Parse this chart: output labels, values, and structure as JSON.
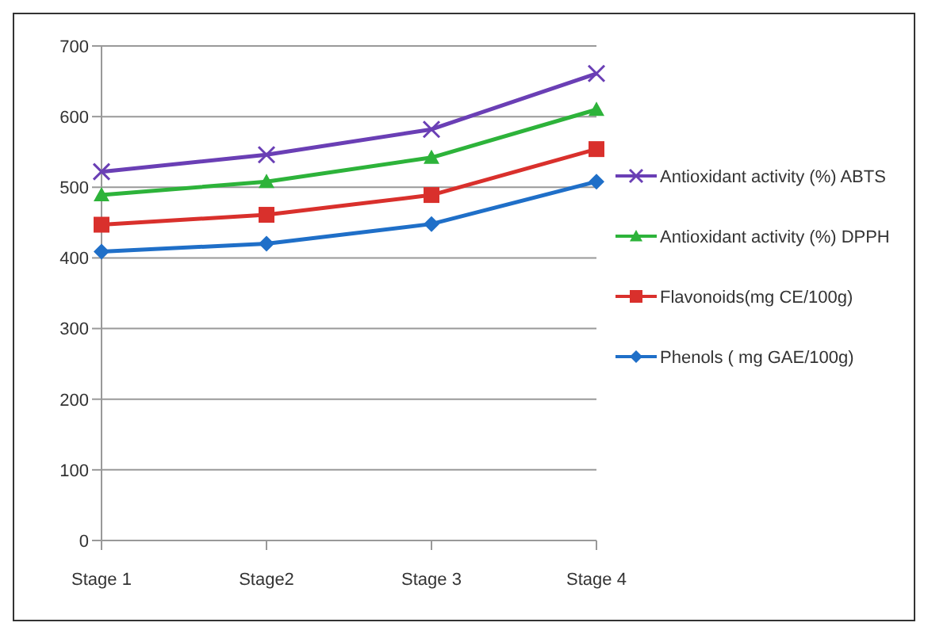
{
  "chart_data": {
    "type": "line",
    "categories": [
      "Stage 1",
      "Stage2",
      "Stage 3",
      "Stage 4"
    ],
    "series": [
      {
        "name": "Antioxidant activity (%) ABTS",
        "color": "#6a3fb5",
        "marker": "cross",
        "values": [
          522,
          546,
          582,
          661
        ]
      },
      {
        "name": "Antioxidant activity (%) DPPH",
        "color": "#2db33a",
        "marker": "triangle",
        "values": [
          489,
          508,
          542,
          610
        ]
      },
      {
        "name": "Flavonoids(mg CE/100g)",
        "color": "#d9302c",
        "marker": "square",
        "values": [
          447,
          461,
          489,
          554
        ]
      },
      {
        "name": "Phenols ( mg GAE/100g)",
        "color": "#1f6fc8",
        "marker": "diamond",
        "values": [
          409,
          420,
          448,
          508
        ]
      }
    ],
    "ylim": [
      0,
      700
    ],
    "yticks": [
      0,
      100,
      200,
      300,
      400,
      500,
      600,
      700
    ],
    "grid": "y",
    "legend": "right"
  }
}
